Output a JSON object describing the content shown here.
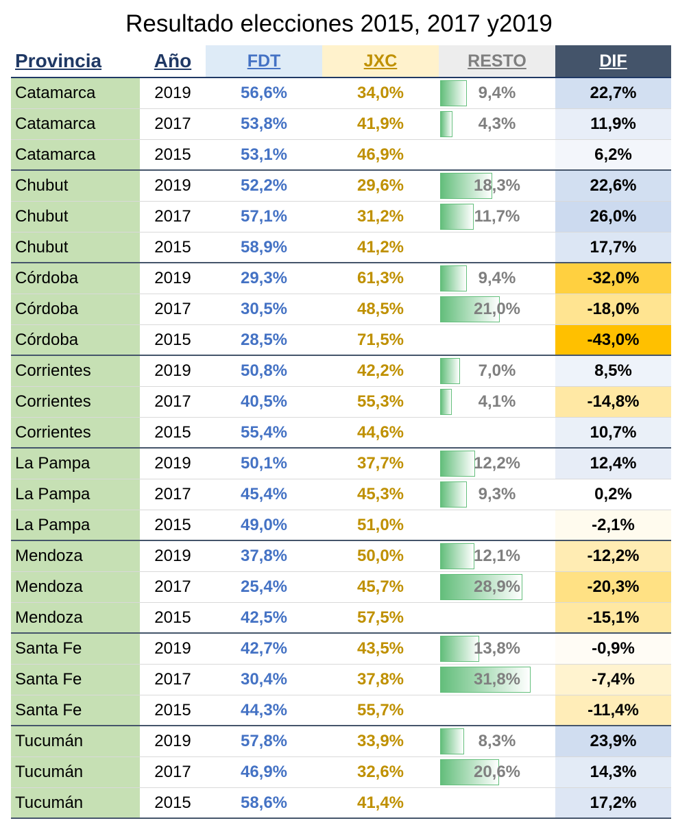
{
  "title": "Resultado elecciones 2015, 2017 y2019",
  "chart_data": {
    "type": "table",
    "columns": [
      "Provincia",
      "Año",
      "FDT",
      "JXC",
      "RESTO",
      "DIF"
    ],
    "rows": [
      {
        "provincia": "Catamarca",
        "anio": "2019",
        "fdt": "56,6%",
        "jxc": "34,0%",
        "resto": "9,4%",
        "resto_value": 9.4,
        "dif": "22,7%",
        "dif_value": 22.7
      },
      {
        "provincia": "Catamarca",
        "anio": "2017",
        "fdt": "53,8%",
        "jxc": "41,9%",
        "resto": "4,3%",
        "resto_value": 4.3,
        "dif": "11,9%",
        "dif_value": 11.9
      },
      {
        "provincia": "Catamarca",
        "anio": "2015",
        "fdt": "53,1%",
        "jxc": "46,9%",
        "resto": "",
        "resto_value": 0,
        "dif": "6,2%",
        "dif_value": 6.2
      },
      {
        "provincia": "Chubut",
        "anio": "2019",
        "fdt": "52,2%",
        "jxc": "29,6%",
        "resto": "18,3%",
        "resto_value": 18.3,
        "dif": "22,6%",
        "dif_value": 22.6
      },
      {
        "provincia": "Chubut",
        "anio": "2017",
        "fdt": "57,1%",
        "jxc": "31,2%",
        "resto": "11,7%",
        "resto_value": 11.7,
        "dif": "26,0%",
        "dif_value": 26.0
      },
      {
        "provincia": "Chubut",
        "anio": "2015",
        "fdt": "58,9%",
        "jxc": "41,2%",
        "resto": "",
        "resto_value": 0,
        "dif": "17,7%",
        "dif_value": 17.7
      },
      {
        "provincia": "Córdoba",
        "anio": "2019",
        "fdt": "29,3%",
        "jxc": "61,3%",
        "resto": "9,4%",
        "resto_value": 9.4,
        "dif": "-32,0%",
        "dif_value": -32.0
      },
      {
        "provincia": "Córdoba",
        "anio": "2017",
        "fdt": "30,5%",
        "jxc": "48,5%",
        "resto": "21,0%",
        "resto_value": 21.0,
        "dif": "-18,0%",
        "dif_value": -18.0
      },
      {
        "provincia": "Córdoba",
        "anio": "2015",
        "fdt": "28,5%",
        "jxc": "71,5%",
        "resto": "",
        "resto_value": 0,
        "dif": "-43,0%",
        "dif_value": -43.0
      },
      {
        "provincia": "Corrientes",
        "anio": "2019",
        "fdt": "50,8%",
        "jxc": "42,2%",
        "resto": "7,0%",
        "resto_value": 7.0,
        "dif": "8,5%",
        "dif_value": 8.5
      },
      {
        "provincia": "Corrientes",
        "anio": "2017",
        "fdt": "40,5%",
        "jxc": "55,3%",
        "resto": "4,1%",
        "resto_value": 4.1,
        "dif": "-14,8%",
        "dif_value": -14.8
      },
      {
        "provincia": "Corrientes",
        "anio": "2015",
        "fdt": "55,4%",
        "jxc": "44,6%",
        "resto": "",
        "resto_value": 0,
        "dif": "10,7%",
        "dif_value": 10.7
      },
      {
        "provincia": "La Pampa",
        "anio": "2019",
        "fdt": "50,1%",
        "jxc": "37,7%",
        "resto": "12,2%",
        "resto_value": 12.2,
        "dif": "12,4%",
        "dif_value": 12.4
      },
      {
        "provincia": "La Pampa",
        "anio": "2017",
        "fdt": "45,4%",
        "jxc": "45,3%",
        "resto": "9,3%",
        "resto_value": 9.3,
        "dif": "0,2%",
        "dif_value": 0.2
      },
      {
        "provincia": "La Pampa",
        "anio": "2015",
        "fdt": "49,0%",
        "jxc": "51,0%",
        "resto": "",
        "resto_value": 0,
        "dif": "-2,1%",
        "dif_value": -2.1
      },
      {
        "provincia": "Mendoza",
        "anio": "2019",
        "fdt": "37,8%",
        "jxc": "50,0%",
        "resto": "12,1%",
        "resto_value": 12.1,
        "dif": "-12,2%",
        "dif_value": -12.2
      },
      {
        "provincia": "Mendoza",
        "anio": "2017",
        "fdt": "25,4%",
        "jxc": "45,7%",
        "resto": "28,9%",
        "resto_value": 28.9,
        "dif": "-20,3%",
        "dif_value": -20.3
      },
      {
        "provincia": "Mendoza",
        "anio": "2015",
        "fdt": "42,5%",
        "jxc": "57,5%",
        "resto": "",
        "resto_value": 0,
        "dif": "-15,1%",
        "dif_value": -15.1
      },
      {
        "provincia": "Santa Fe",
        "anio": "2019",
        "fdt": "42,7%",
        "jxc": "43,5%",
        "resto": "13,8%",
        "resto_value": 13.8,
        "dif": "-0,9%",
        "dif_value": -0.9
      },
      {
        "provincia": "Santa Fe",
        "anio": "2017",
        "fdt": "30,4%",
        "jxc": "37,8%",
        "resto": "31,8%",
        "resto_value": 31.8,
        "dif": "-7,4%",
        "dif_value": -7.4
      },
      {
        "provincia": "Santa Fe",
        "anio": "2015",
        "fdt": "44,3%",
        "jxc": "55,7%",
        "resto": "",
        "resto_value": 0,
        "dif": "-11,4%",
        "dif_value": -11.4
      },
      {
        "provincia": "Tucumán",
        "anio": "2019",
        "fdt": "57,8%",
        "jxc": "33,9%",
        "resto": "8,3%",
        "resto_value": 8.3,
        "dif": "23,9%",
        "dif_value": 23.9
      },
      {
        "provincia": "Tucumán",
        "anio": "2017",
        "fdt": "46,9%",
        "jxc": "32,6%",
        "resto": "20,6%",
        "resto_value": 20.6,
        "dif": "14,3%",
        "dif_value": 14.3
      },
      {
        "provincia": "Tucumán",
        "anio": "2015",
        "fdt": "58,6%",
        "jxc": "41,4%",
        "resto": "",
        "resto_value": 0,
        "dif": "17,2%",
        "dif_value": 17.2
      }
    ]
  },
  "colors": {
    "header_navy": "#1f3864",
    "fdt_blue": "#4472c4",
    "jxc_gold": "#bf9000",
    "resto_gray": "#7f7f7f",
    "province_green": "#c6e0b4",
    "bar_green": "#63be7b",
    "dif_header": "#44546a",
    "dif_positive": "#c9d8ee",
    "dif_negative": "#ffc000"
  }
}
